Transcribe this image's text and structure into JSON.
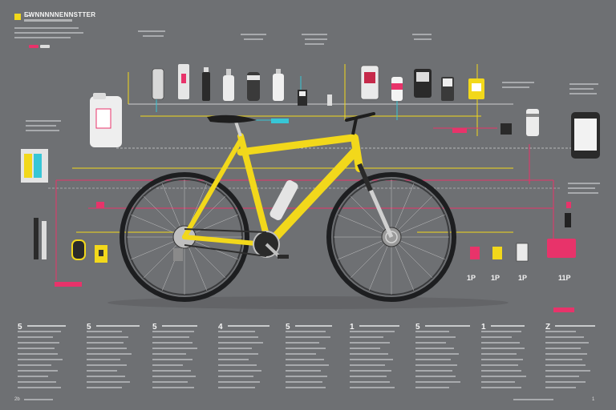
{
  "header": {
    "title": "E̶WNNNNNENNSTTER",
    "logo_color": "#f2d81b"
  },
  "colors": {
    "background": "#6e7073",
    "frame": "#f2d81b",
    "accent_red": "#e8336a",
    "accent_yellow": "#f2d81b",
    "accent_cyan": "#37c6d6",
    "line_white": "#e6e6e6",
    "tire": "#1d1e20"
  },
  "callout_numbers": [
    {
      "id": "n1",
      "text": "1P"
    },
    {
      "id": "n2",
      "text": "1P"
    },
    {
      "id": "n3",
      "text": "1P"
    },
    {
      "id": "n4",
      "text": "11P"
    }
  ],
  "column_numbers": [
    "5",
    "5",
    "5",
    "4",
    "5",
    "1",
    "5",
    "1",
    "Z"
  ],
  "footer": {
    "left": "2b",
    "right": "1"
  },
  "icons": [
    "jug-icon",
    "spray-bottle-icon",
    "bottle-icon",
    "canister-icon",
    "tool-icon",
    "gauge-icon",
    "battery-icon",
    "pump-icon",
    "light-icon"
  ]
}
